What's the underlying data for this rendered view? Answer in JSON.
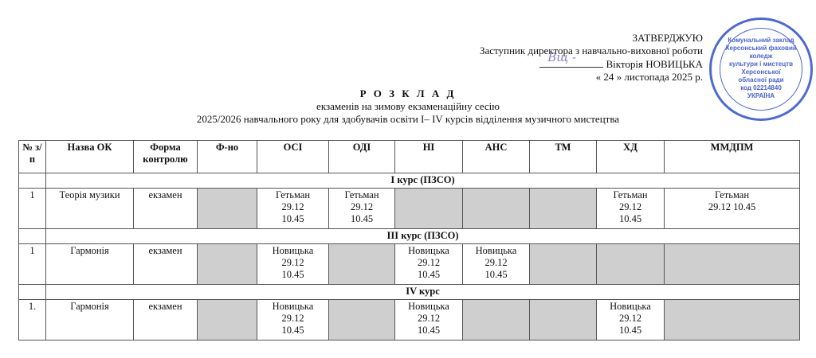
{
  "approval": {
    "title": "ЗАТВЕРДЖУЮ",
    "position": "Заступник директора з навчально-виховної роботи",
    "name": "Вікторія НОВИЦЬКА",
    "date_day": "«  24   »",
    "date_rest": "листопада 2025 р.",
    "stamp_text": [
      "Комунальний заклад",
      "Херсонський фаховий",
      "коледж",
      "культури і мистецтв",
      "Херсонської",
      "обласної ради",
      "код 02214840",
      "УКРАЇНА"
    ]
  },
  "heading": {
    "title": "Р О З К Л А Д",
    "line1": "екзаменів на зимову екзаменаційну сесію",
    "line2": "2025/2026 навчального року для здобувачів освіти I– IV курсів відділення музичного мистецтва"
  },
  "table": {
    "headers": [
      "№ з/п",
      "Назва ОК",
      "Форма контролю",
      "Ф-но",
      "ОСІ",
      "ОДІ",
      "НІ",
      "АНС",
      "ТМ",
      "ХД",
      "ММДПМ"
    ],
    "sections": [
      {
        "title": "I курс (ПЗСО)",
        "rows": [
          {
            "num": "1",
            "name": "Теорія музики",
            "form": "екзамен",
            "cells": [
              null,
              "Гетьман\n29.12\n10.45",
              "Гетьман\n29.12\n10.45",
              null,
              null,
              null,
              "Гетьман\n29.12\n10.45",
              "Гетьман\n29.12    10.45"
            ]
          }
        ]
      },
      {
        "title": "III курс (ПЗСО)",
        "rows": [
          {
            "num": "1",
            "name": "Гармонія",
            "form": "екзамен",
            "cells": [
              null,
              "Новицька\n29.12\n10.45",
              null,
              "Новицька\n29.12\n10.45",
              "Новицька\n29.12\n10.45",
              null,
              null,
              null
            ]
          }
        ]
      },
      {
        "title": "IV курс",
        "rows": [
          {
            "num": "1.",
            "name": "Гармонія",
            "form": "екзамен",
            "cells": [
              null,
              "Новицька\n29.12\n10.45",
              null,
              "Новицька\n29.12\n10.45",
              null,
              null,
              "Новицька\n29.12\n10.45",
              null
            ]
          }
        ]
      }
    ]
  },
  "colors": {
    "empty_cell": "#cfcfcf",
    "stamp": "#3050c8",
    "signature": "#8a7fc8"
  }
}
